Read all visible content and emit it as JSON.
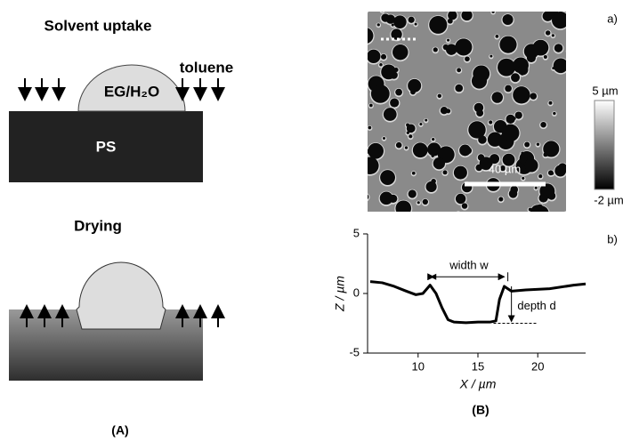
{
  "panel_a": {
    "uptake_title": "Solvent uptake",
    "toluene": "toluene",
    "droplet": "EG/H₂O",
    "substrate": "PS",
    "drying_title": "Drying",
    "label": "(A)"
  },
  "panel_b": {
    "image_label": "a)",
    "scale_bar": "40 µm",
    "colorbar_max": "5 µm",
    "colorbar_min": "-2 µm",
    "profile_label": "b)",
    "label": "(B)"
  },
  "chart_data": {
    "type": "line",
    "x": [
      6,
      7,
      8,
      9,
      9.8,
      10.4,
      11,
      11.5,
      12,
      12.5,
      13,
      14,
      15,
      16,
      16.5,
      16.8,
      17.2,
      17.8,
      19,
      21,
      23,
      24
    ],
    "values": [
      1.0,
      0.9,
      0.6,
      0.2,
      -0.1,
      0.0,
      0.7,
      0.0,
      -1.2,
      -2.2,
      -2.4,
      -2.45,
      -2.4,
      -2.4,
      -2.3,
      -0.5,
      0.6,
      0.2,
      0.3,
      0.4,
      0.7,
      0.8
    ],
    "color": "#000000",
    "xlim": [
      6,
      24
    ],
    "ylim": [
      -5,
      5
    ],
    "xticks": [
      10,
      15,
      20
    ],
    "yticks": [
      -5,
      0,
      5
    ],
    "xlabel": "X / µm",
    "ylabel": "Z / µm",
    "annotations": [
      "width w",
      "depth d"
    ]
  }
}
